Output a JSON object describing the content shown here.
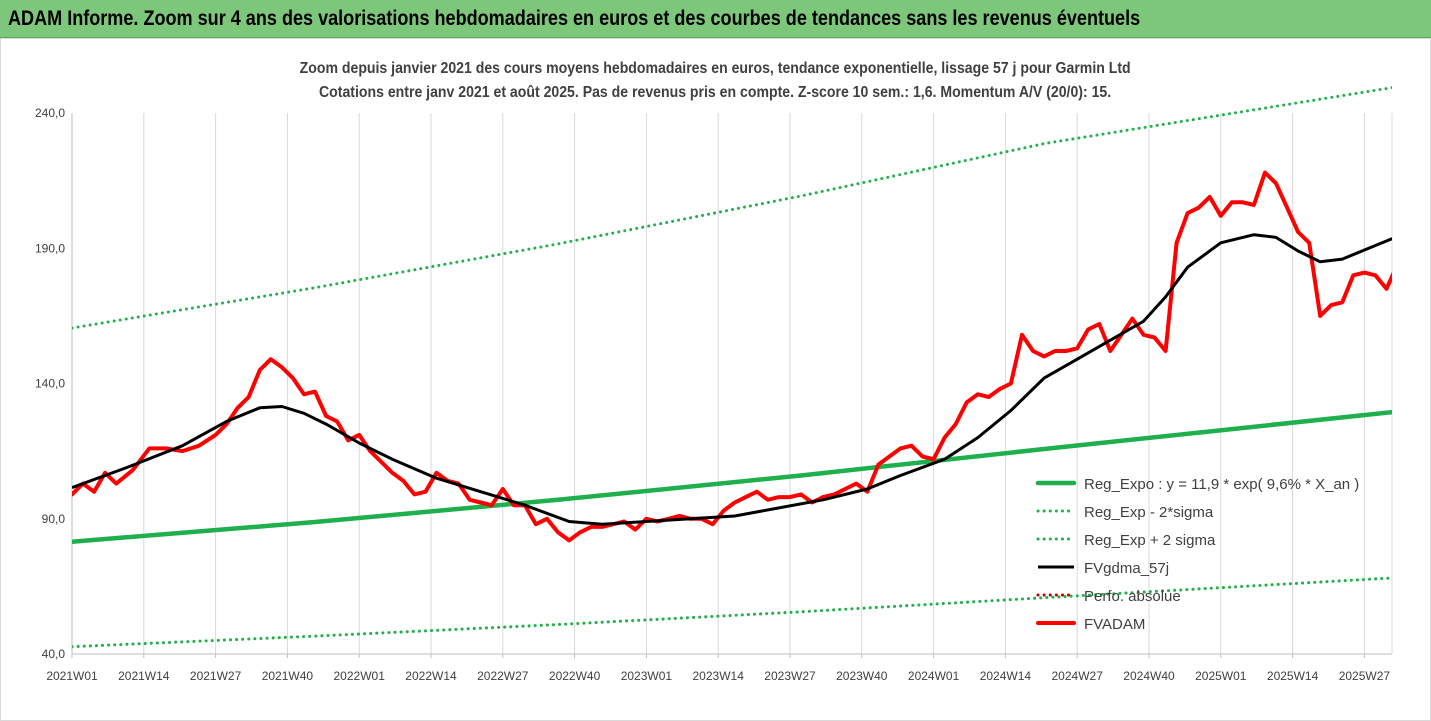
{
  "banner": {
    "title": "ADAM Informe. Zoom sur 4 ans des valorisations hebdomadaires en euros et des courbes de tendances sans les revenus éventuels"
  },
  "colors": {
    "banner_bg": "#7dc77b",
    "reg_expo": "#1eb04c",
    "dotted_band": "#22b04c",
    "fvgdma": "#000000",
    "fvadam": "#ff0000",
    "perfo": "#c00000"
  },
  "chart_data": {
    "type": "line",
    "title_line1": "Zoom depuis janvier 2021 des cours moyens hebdomadaires en euros, tendance exponentielle, lissage 57 j pour Garmin Ltd",
    "title_line2": "Cotations entre janv 2021 et août 2025. Pas de revenus pris en compte. Z-score 10 sem.: 1,6. Momentum A/V (20/0): 15.",
    "ylim": [
      40,
      240
    ],
    "yticks": [
      "40,0",
      "90,0",
      "140,0",
      "190,0",
      "240,0"
    ],
    "ytick_values": [
      40,
      90,
      140,
      190,
      240
    ],
    "grid": "vertical",
    "weeks": 240,
    "xticks": [
      {
        "label": "2021W01",
        "week": 0
      },
      {
        "label": "2021W14",
        "week": 13
      },
      {
        "label": "2021W27",
        "week": 26
      },
      {
        "label": "2021W40",
        "week": 39
      },
      {
        "label": "2022W01",
        "week": 52
      },
      {
        "label": "2022W14",
        "week": 65
      },
      {
        "label": "2022W27",
        "week": 78
      },
      {
        "label": "2022W40",
        "week": 91
      },
      {
        "label": "2023W01",
        "week": 104
      },
      {
        "label": "2023W14",
        "week": 117
      },
      {
        "label": "2023W27",
        "week": 130
      },
      {
        "label": "2023W40",
        "week": 143
      },
      {
        "label": "2024W01",
        "week": 156
      },
      {
        "label": "2024W14",
        "week": 169
      },
      {
        "label": "2024W27",
        "week": 182
      },
      {
        "label": "2024W40",
        "week": 195
      },
      {
        "label": "2025W01",
        "week": 208
      },
      {
        "label": "2025W14",
        "week": 221
      },
      {
        "label": "2025W27",
        "week": 234
      }
    ],
    "legend_position": "right",
    "series": [
      {
        "name": "Reg_Expo : y = 11,9 * exp( 9,6% *  X_an )",
        "style": "solid-thick",
        "color_key": "reg_expo",
        "points": [
          [
            0,
            81.5
          ],
          [
            44,
            88.8
          ],
          [
            88,
            97
          ],
          [
            132,
            106
          ],
          [
            176,
            115.8
          ],
          [
            244,
            130.5
          ]
        ]
      },
      {
        "name": "Reg_Exp - 2*sigma",
        "style": "dotted",
        "color_key": "dotted_band",
        "points": [
          [
            0,
            42.7
          ],
          [
            44,
            46.6
          ],
          [
            88,
            50.9
          ],
          [
            132,
            55.6
          ],
          [
            176,
            60.8
          ],
          [
            244,
            68.7
          ]
        ]
      },
      {
        "name": "Reg_Exp + 2 sigma",
        "style": "dotted",
        "color_key": "dotted_band",
        "points": [
          [
            0,
            160.5
          ],
          [
            44,
            175.4
          ],
          [
            88,
            191.6
          ],
          [
            132,
            209.3
          ],
          [
            176,
            228.7
          ],
          [
            244,
            251
          ]
        ]
      },
      {
        "name": "FVgdma_57j",
        "style": "solid",
        "color_key": "fvgdma",
        "points": [
          [
            0,
            101.5
          ],
          [
            10,
            109
          ],
          [
            20,
            117
          ],
          [
            28,
            126
          ],
          [
            34,
            131
          ],
          [
            38,
            131.5
          ],
          [
            42,
            129
          ],
          [
            46,
            125
          ],
          [
            52,
            118
          ],
          [
            58,
            112
          ],
          [
            66,
            105
          ],
          [
            74,
            100
          ],
          [
            82,
            95
          ],
          [
            90,
            89
          ],
          [
            96,
            88
          ],
          [
            104,
            89
          ],
          [
            112,
            90
          ],
          [
            120,
            91
          ],
          [
            128,
            94
          ],
          [
            136,
            97
          ],
          [
            144,
            101
          ],
          [
            150,
            106
          ],
          [
            158,
            112
          ],
          [
            164,
            120
          ],
          [
            170,
            130
          ],
          [
            176,
            142
          ],
          [
            182,
            149
          ],
          [
            188,
            156
          ],
          [
            194,
            163
          ],
          [
            198,
            172
          ],
          [
            202,
            183
          ],
          [
            208,
            192
          ],
          [
            214,
            195
          ],
          [
            218,
            194
          ],
          [
            222,
            189
          ],
          [
            226,
            185
          ],
          [
            230,
            186
          ],
          [
            236,
            191
          ],
          [
            242,
            196
          ],
          [
            245,
            198.5
          ]
        ]
      },
      {
        "name": "Perfo. absolue",
        "style": "dotted",
        "color_key": "perfo",
        "points": []
      },
      {
        "name": "FVADAM",
        "style": "solid-thick",
        "color_key": "fvadam",
        "points": [
          [
            0,
            99
          ],
          [
            2,
            103
          ],
          [
            4,
            100
          ],
          [
            6,
            107
          ],
          [
            8,
            103
          ],
          [
            11,
            108
          ],
          [
            14,
            116
          ],
          [
            17,
            116
          ],
          [
            20,
            115
          ],
          [
            23,
            117
          ],
          [
            26,
            121
          ],
          [
            28,
            125
          ],
          [
            30,
            131
          ],
          [
            32,
            135
          ],
          [
            34,
            145
          ],
          [
            36,
            149
          ],
          [
            38,
            146
          ],
          [
            40,
            142
          ],
          [
            42,
            136
          ],
          [
            44,
            137
          ],
          [
            46,
            128
          ],
          [
            48,
            126
          ],
          [
            50,
            119
          ],
          [
            52,
            121
          ],
          [
            54,
            115
          ],
          [
            56,
            111
          ],
          [
            58,
            107
          ],
          [
            60,
            104
          ],
          [
            62,
            99
          ],
          [
            64,
            100
          ],
          [
            66,
            107
          ],
          [
            68,
            104
          ],
          [
            70,
            103
          ],
          [
            72,
            97
          ],
          [
            74,
            96
          ],
          [
            76,
            95
          ],
          [
            78,
            101
          ],
          [
            80,
            95
          ],
          [
            82,
            95
          ],
          [
            84,
            88
          ],
          [
            86,
            90
          ],
          [
            88,
            85
          ],
          [
            90,
            82
          ],
          [
            92,
            85
          ],
          [
            94,
            87
          ],
          [
            96,
            87
          ],
          [
            98,
            88
          ],
          [
            100,
            89
          ],
          [
            102,
            86
          ],
          [
            104,
            90
          ],
          [
            106,
            89
          ],
          [
            108,
            90
          ],
          [
            110,
            91
          ],
          [
            112,
            90
          ],
          [
            114,
            90
          ],
          [
            116,
            88
          ],
          [
            118,
            93
          ],
          [
            120,
            96
          ],
          [
            122,
            98
          ],
          [
            124,
            100
          ],
          [
            126,
            97
          ],
          [
            128,
            98
          ],
          [
            130,
            98
          ],
          [
            132,
            99
          ],
          [
            134,
            96
          ],
          [
            136,
            98
          ],
          [
            138,
            99
          ],
          [
            140,
            101
          ],
          [
            142,
            103
          ],
          [
            144,
            100
          ],
          [
            146,
            110
          ],
          [
            148,
            113
          ],
          [
            150,
            116
          ],
          [
            152,
            117
          ],
          [
            154,
            113
          ],
          [
            156,
            112
          ],
          [
            158,
            120
          ],
          [
            160,
            125
          ],
          [
            162,
            133
          ],
          [
            164,
            136
          ],
          [
            166,
            135
          ],
          [
            168,
            138
          ],
          [
            170,
            140
          ],
          [
            172,
            158
          ],
          [
            174,
            152
          ],
          [
            176,
            150
          ],
          [
            178,
            152
          ],
          [
            180,
            152
          ],
          [
            182,
            153
          ],
          [
            184,
            160
          ],
          [
            186,
            162
          ],
          [
            188,
            152
          ],
          [
            190,
            158
          ],
          [
            192,
            164
          ],
          [
            194,
            158
          ],
          [
            196,
            157
          ],
          [
            198,
            152
          ],
          [
            200,
            192
          ],
          [
            202,
            203
          ],
          [
            204,
            205
          ],
          [
            206,
            209
          ],
          [
            208,
            202
          ],
          [
            210,
            207
          ],
          [
            212,
            207
          ],
          [
            214,
            206
          ],
          [
            216,
            218
          ],
          [
            218,
            214
          ],
          [
            220,
            205
          ],
          [
            222,
            196
          ],
          [
            224,
            192
          ],
          [
            226,
            165
          ],
          [
            228,
            169
          ],
          [
            230,
            170
          ],
          [
            232,
            180
          ],
          [
            234,
            181
          ],
          [
            236,
            180
          ],
          [
            238,
            175
          ],
          [
            240,
            184
          ],
          [
            242,
            198
          ],
          [
            244,
            201
          ],
          [
            246,
            205
          ]
        ]
      }
    ]
  }
}
